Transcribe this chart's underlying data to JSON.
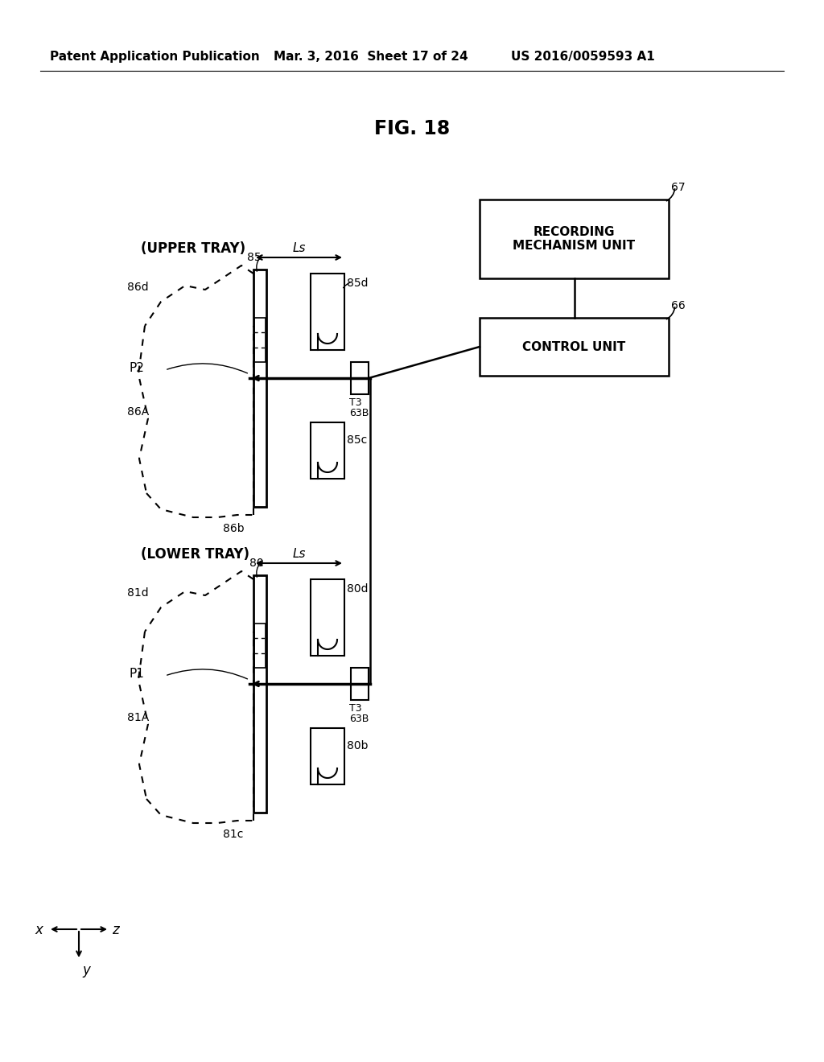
{
  "title": "FIG. 18",
  "header_left": "Patent Application Publication",
  "header_mid": "Mar. 3, 2016  Sheet 17 of 24",
  "header_right": "US 2016/0059593 A1",
  "bg_color": "#ffffff",
  "upper_tray_label": "(UPPER TRAY)",
  "lower_tray_label": "(LOWER TRAY)",
  "recording_unit_label": "RECORDING\nMECHANISM UNIT",
  "control_unit_label": "CONTROL UNIT",
  "ref_67": "67",
  "ref_66": "66",
  "ref_85": "85",
  "ref_85d": "85d",
  "ref_85c": "85c",
  "ref_86d": "86d",
  "ref_86A": "86A",
  "ref_86b": "86b",
  "ref_P2": "P2",
  "ref_T3_upper": "T3",
  "ref_63B_upper": "63B",
  "ref_Ls_upper": "Ls",
  "ref_80": "80",
  "ref_80d": "80d",
  "ref_80b": "80b",
  "ref_81d": "81d",
  "ref_81A": "81A",
  "ref_81c": "81c",
  "ref_P1": "P1",
  "ref_T3_lower": "T3",
  "ref_63B_lower": "63B",
  "ref_Ls_lower": "Ls"
}
